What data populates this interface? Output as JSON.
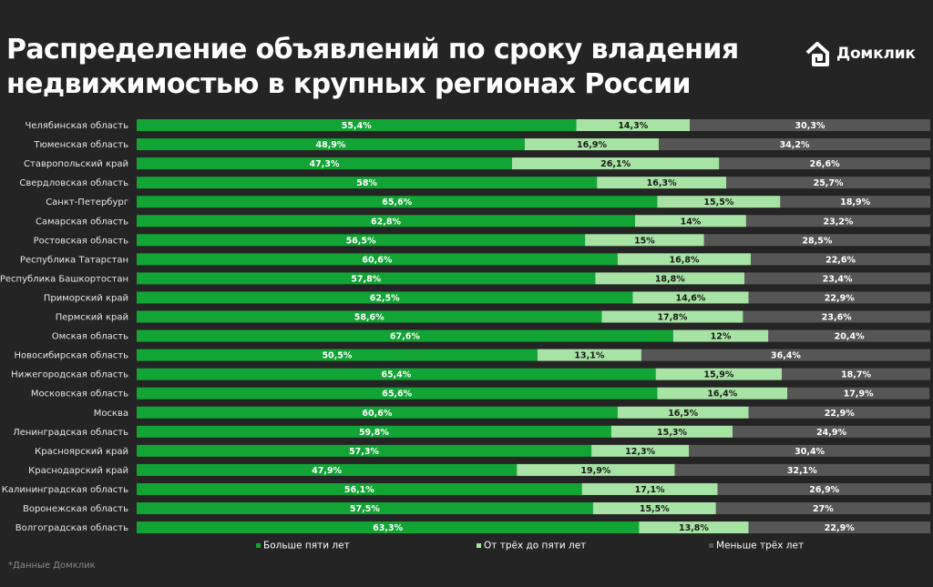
{
  "title_line1": "Распределение объявлений по сроку владения",
  "title_line2": "недвижимостью в крупных регионах России",
  "brand": {
    "name": "Домклик",
    "logo_icon": "domclick-house-icon"
  },
  "footnote": "*Данные Домклик",
  "colors": {
    "background": "#242424",
    "green_dark": "#12a434",
    "green_light": "#a7e3a4",
    "gray": "#565656"
  },
  "chart_data": {
    "type": "bar",
    "orientation": "horizontal",
    "stacked": true,
    "percent_suffix": "%",
    "categories": [
      "Челябинская область",
      "Тюменская область",
      "Ставропольский край",
      "Свердловская область",
      "Санкт-Петербург",
      "Самарская область",
      "Ростовская область",
      "Республика Татарстан",
      "Республика Башкортостан",
      "Приморский край",
      "Пермский край",
      "Омская область",
      "Новосибирская область",
      "Нижегородская область",
      "Московская область",
      "Москва",
      "Ленинградская область",
      "Красноярский край",
      "Краснодарский край",
      "Калининградская область",
      "Воронежская область",
      "Волгоградская область"
    ],
    "series": [
      {
        "name": "Больше пяти лет",
        "color": "#12a434",
        "label_color": "#ffffff",
        "values": [
          "55,4",
          "48,9",
          "47,3",
          "58",
          "65,6",
          "62,8",
          "56,5",
          "60,6",
          "57,8",
          "62,5",
          "58,6",
          "67,6",
          "50,5",
          "65,4",
          "65,6",
          "60,6",
          "59,8",
          "57,3",
          "47,9",
          "56,1",
          "57,5",
          "63,3"
        ]
      },
      {
        "name": "От трёх до пяти лет",
        "color": "#a7e3a4",
        "label_color": "#1a1a1a",
        "values": [
          "14,3",
          "16,9",
          "26,1",
          "16,3",
          "15,5",
          "14",
          "15",
          "16,8",
          "18,8",
          "14,6",
          "17,8",
          "12",
          "13,1",
          "15,9",
          "16,4",
          "16,5",
          "15,3",
          "12,3",
          "19,9",
          "17,1",
          "15,5",
          "13,8"
        ]
      },
      {
        "name": "Меньше трёх лет",
        "color": "#565656",
        "label_color": "#ffffff",
        "values": [
          "30,3",
          "34,2",
          "26,6",
          "25,7",
          "18,9",
          "23,2",
          "28,5",
          "22,6",
          "23,4",
          "22,9",
          "23,6",
          "20,4",
          "36,4",
          "18,7",
          "17,9",
          "22,9",
          "24,9",
          "30,4",
          "32,1",
          "26,9",
          "27",
          "22,9"
        ]
      }
    ],
    "xlim": [
      0,
      100
    ],
    "legend_position": "bottom"
  }
}
